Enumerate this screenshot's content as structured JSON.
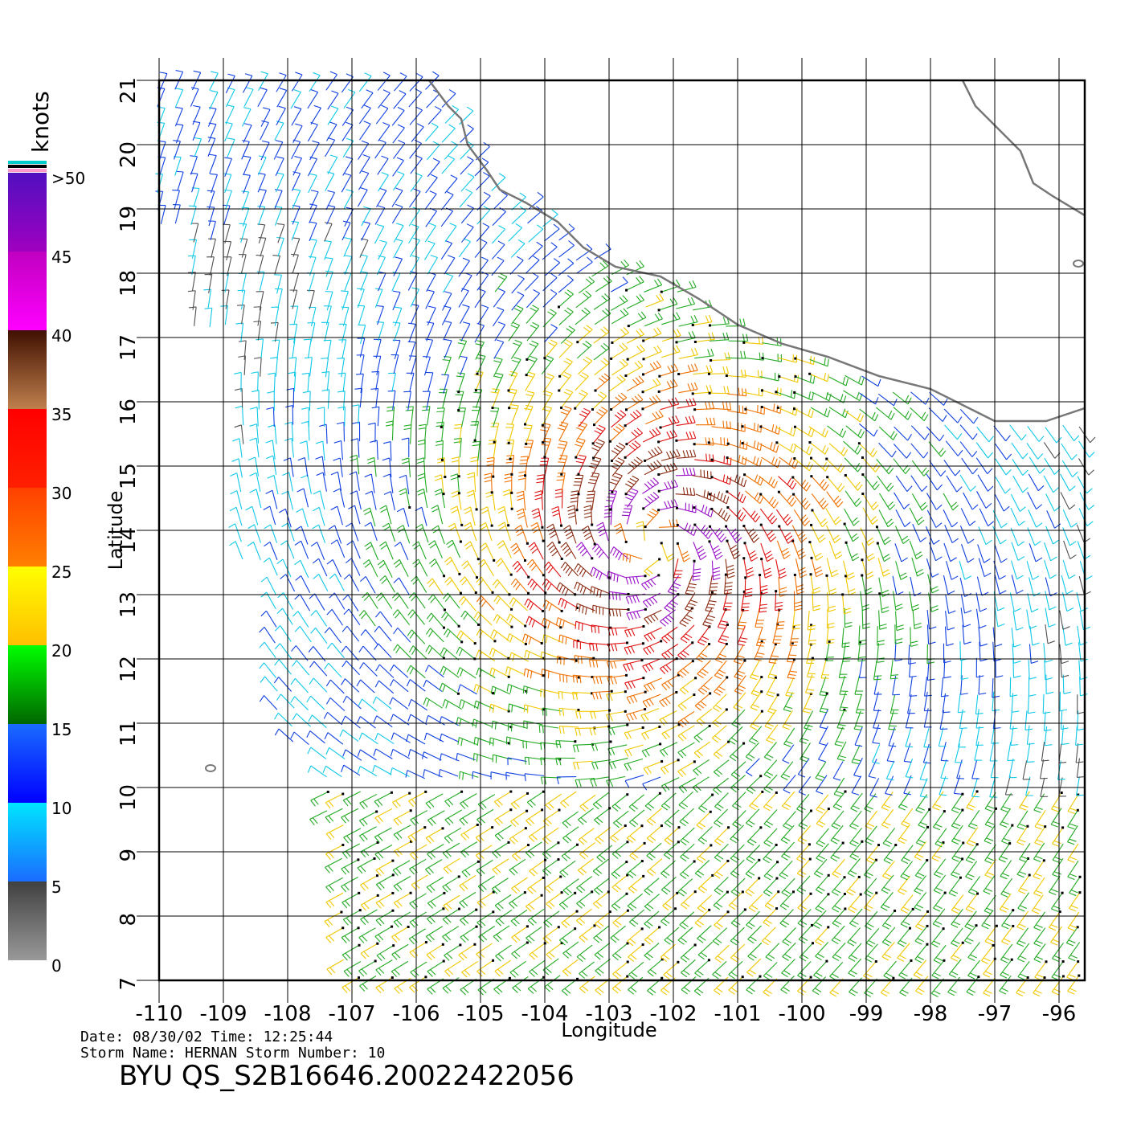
{
  "map": {
    "lon_range": [
      -110,
      -95.6
    ],
    "lat_range": [
      7,
      21
    ],
    "lon_ticks": [
      "-110",
      "-109",
      "-108",
      "-107",
      "-106",
      "-105",
      "-104",
      "-103",
      "-102",
      "-101",
      "-100",
      "-99",
      "-98",
      "-97",
      "-96"
    ],
    "lat_ticks": [
      "7",
      "8",
      "9",
      "10",
      "11",
      "12",
      "13",
      "14",
      "15",
      "16",
      "17",
      "18",
      "19",
      "20",
      "21"
    ],
    "xlabel": "Longitude",
    "ylabel": "Latitude",
    "storm_center": {
      "lon": -102.3,
      "lat": 13.8
    },
    "coastline": [
      [
        -105.8,
        21.0
      ],
      [
        -105.5,
        20.6
      ],
      [
        -105.3,
        20.4
      ],
      [
        -105.2,
        20.0
      ],
      [
        -104.9,
        19.6
      ],
      [
        -104.7,
        19.3
      ],
      [
        -104.3,
        19.1
      ],
      [
        -103.8,
        18.8
      ],
      [
        -103.4,
        18.4
      ],
      [
        -102.9,
        18.1
      ],
      [
        -102.2,
        17.95
      ],
      [
        -101.6,
        17.6
      ],
      [
        -101.0,
        17.2
      ],
      [
        -100.3,
        16.9
      ],
      [
        -99.6,
        16.7
      ],
      [
        -98.8,
        16.4
      ],
      [
        -98.0,
        16.2
      ],
      [
        -97.4,
        15.9
      ],
      [
        -97.0,
        15.7
      ],
      [
        -96.6,
        15.7
      ],
      [
        -96.2,
        15.7
      ],
      [
        -95.6,
        15.9
      ]
    ],
    "coastline_ne": [
      [
        -97.5,
        21.0
      ],
      [
        -97.3,
        20.6
      ],
      [
        -97.0,
        20.3
      ],
      [
        -96.6,
        19.9
      ],
      [
        -96.4,
        19.4
      ],
      [
        -96.1,
        19.2
      ],
      [
        -95.6,
        18.9
      ]
    ],
    "islands": [
      {
        "lon": -109.2,
        "lat": 10.3
      },
      {
        "lon": -95.7,
        "lat": 18.15
      }
    ]
  },
  "colorbar": {
    "unit": "knots",
    "labels": [
      ">50",
      "45",
      "40",
      "35",
      "30",
      "25",
      "20",
      "15",
      "10",
      "5",
      "0"
    ],
    "bands": [
      {
        "from": 0,
        "to": 5,
        "top": "#404040",
        "bottom": "#999999"
      },
      {
        "from": 5,
        "to": 10,
        "top": "#00e5ff",
        "bottom": "#1a6cff"
      },
      {
        "from": 10,
        "to": 15,
        "top": "#1a6cff",
        "bottom": "#0000ff"
      },
      {
        "from": 15,
        "to": 20,
        "top": "#00ff00",
        "bottom": "#006600"
      },
      {
        "from": 20,
        "to": 25,
        "top": "#ffff00",
        "bottom": "#ffbf00"
      },
      {
        "from": 25,
        "to": 30,
        "top": "#ff4000",
        "bottom": "#ff8000"
      },
      {
        "from": 30,
        "to": 35,
        "top": "#ff0000",
        "bottom": "#ff2000"
      },
      {
        "from": 35,
        "to": 40,
        "top": "#401000",
        "bottom": "#c0804d"
      },
      {
        "from": 40,
        "to": 45,
        "top": "#c000c0",
        "bottom": "#ff00ff"
      },
      {
        "from": 45,
        "to": 50,
        "top": "#5010c0",
        "bottom": "#a000c0"
      }
    ],
    "cap_colors": [
      "#00cccc",
      "#000000",
      "#ff99cc"
    ]
  },
  "footer": {
    "date_line": "Date: 08/30/02   Time: 12:25:44",
    "storm_line": "Storm Name: HERNAN   Storm Number: 10",
    "product": "BYU QS_S2B16646.20022422056"
  }
}
